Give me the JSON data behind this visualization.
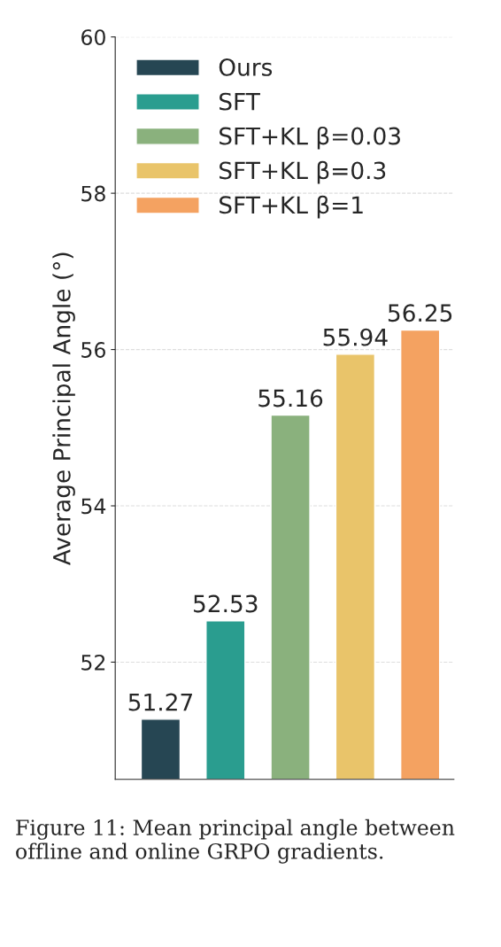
{
  "chart_data": {
    "type": "bar",
    "ylabel": "Average Principal Angle (°)",
    "categories": [
      null,
      null,
      null,
      null,
      null
    ],
    "series": [
      {
        "name": "Ours",
        "color": "#264653",
        "values": [
          51.27,
          null,
          null,
          null,
          null
        ]
      },
      {
        "name": "SFT",
        "color": "#2a9d8f",
        "values": [
          null,
          52.53,
          null,
          null,
          null
        ]
      },
      {
        "name": "SFT+KL β=0.03",
        "color": "#8ab17d",
        "values": [
          null,
          null,
          55.16,
          null,
          null
        ]
      },
      {
        "name": "SFT+KL β=0.3",
        "color": "#e9c46a",
        "values": [
          null,
          null,
          null,
          55.94,
          null
        ]
      },
      {
        "name": "SFT+KL β=1",
        "color": "#f4a261",
        "values": [
          null,
          null,
          null,
          null,
          56.25
        ]
      }
    ],
    "ylim": [
      50.5,
      60
    ],
    "yticks": [
      52,
      54,
      56,
      58,
      60
    ],
    "grid": "y",
    "legend": "top left",
    "data_labels": true,
    "tick_labels": "y",
    "annotations": [
      "Figure 11: Mean principal angle between offline and online GRPO gradients."
    ]
  }
}
